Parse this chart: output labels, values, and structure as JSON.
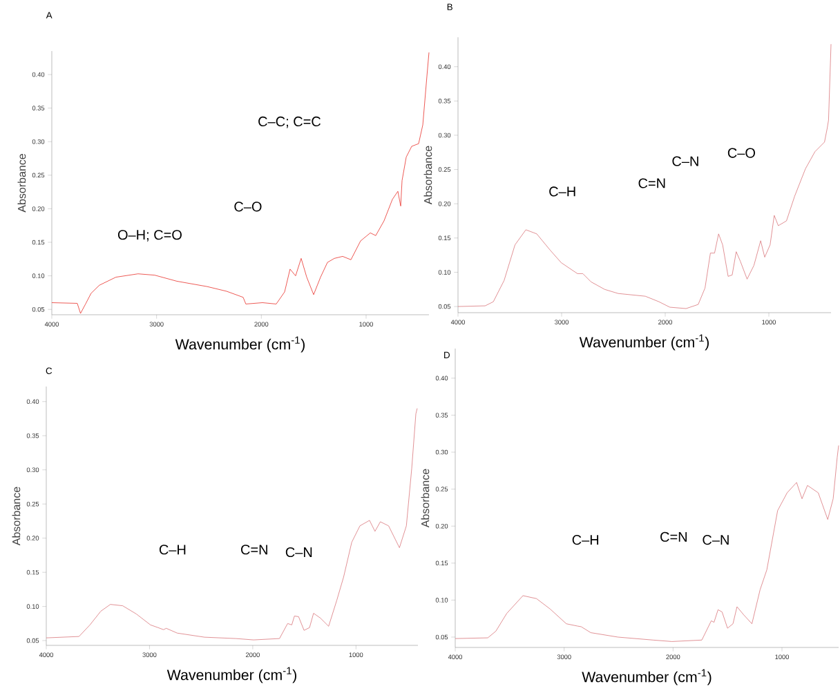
{
  "chart_data": [
    {
      "type": "line",
      "title": "A",
      "xlabel": "Wavenumber (cm$^{-1}$)",
      "ylabel": "Absorbance",
      "color": "#e8302a",
      "x": [
        4000,
        3757,
        3726,
        3678,
        3625,
        3546,
        3388,
        3177,
        3018,
        2807,
        2517,
        2332,
        2174,
        2148,
        1989,
        1858,
        1778,
        1726,
        1673,
        1620,
        1567,
        1501,
        1435,
        1369,
        1303,
        1224,
        1145,
        1053,
        960,
        908,
        829,
        749,
        697,
        670,
        657,
        617,
        565,
        499,
        459,
        420,
        400
      ],
      "values": [
        0.06,
        0.059,
        0.044,
        0.058,
        0.074,
        0.086,
        0.098,
        0.103,
        0.101,
        0.092,
        0.084,
        0.077,
        0.068,
        0.058,
        0.06,
        0.058,
        0.076,
        0.11,
        0.1,
        0.126,
        0.098,
        0.072,
        0.098,
        0.12,
        0.126,
        0.129,
        0.124,
        0.152,
        0.164,
        0.16,
        0.182,
        0.214,
        0.226,
        0.204,
        0.242,
        0.277,
        0.293,
        0.297,
        0.325,
        0.397,
        0.433
      ],
      "xlim": [
        4000,
        400
      ],
      "ylim": [
        0.042,
        0.435
      ],
      "xticks": [
        4000,
        3000,
        2000,
        1000
      ],
      "yticks": [
        0.05,
        {
          "value": 0.1,
          "label": "0.10"
        },
        0.15,
        {
          "value": 0.2,
          "label": "0.20"
        },
        0.25,
        {
          "value": 0.3,
          "label": "0.30"
        },
        0.35,
        {
          "value": 0.4,
          "label": "0.40"
        }
      ],
      "annotations": [
        "O–H; C=O",
        "C–O",
        "C–C; C=C"
      ]
    },
    {
      "type": "line",
      "title": "B",
      "xlabel": "Wavenumber (cm$^{-1}$)",
      "ylabel": "Absorbance",
      "color": "#d9767b",
      "x": [
        4000,
        3738,
        3659,
        3555,
        3450,
        3345,
        3240,
        3109,
        3004,
        2926,
        2847,
        2795,
        2716,
        2585,
        2454,
        2192,
        2061,
        1956,
        1799,
        1682,
        1616,
        1564,
        1524,
        1485,
        1446,
        1393,
        1354,
        1315,
        1275,
        1210,
        1144,
        1079,
        1040,
        988,
        948,
        909,
        830,
        751,
        647,
        555,
        463,
        437,
        424,
        400
      ],
      "values": [
        0.05,
        0.051,
        0.057,
        0.088,
        0.14,
        0.162,
        0.156,
        0.132,
        0.114,
        0.106,
        0.098,
        0.098,
        0.086,
        0.075,
        0.069,
        0.065,
        0.057,
        0.049,
        0.047,
        0.053,
        0.077,
        0.128,
        0.128,
        0.156,
        0.14,
        0.094,
        0.096,
        0.13,
        0.116,
        0.09,
        0.11,
        0.146,
        0.122,
        0.14,
        0.183,
        0.168,
        0.175,
        0.211,
        0.251,
        0.276,
        0.29,
        0.31,
        0.322,
        0.433
      ],
      "xlim": [
        4000,
        400
      ],
      "ylim": [
        0.041,
        0.443
      ],
      "xticks": [
        4000,
        3000,
        2000,
        1000
      ],
      "yticks": [
        0.05,
        {
          "value": 0.1,
          "label": "0.10"
        },
        0.15,
        {
          "value": 0.2,
          "label": "0.20"
        },
        0.25,
        {
          "value": 0.3,
          "label": "0.30"
        },
        0.35,
        {
          "value": 0.4,
          "label": "0.40"
        }
      ],
      "annotations": [
        "C–H",
        "C=N",
        "C–N",
        "C–O"
      ]
    },
    {
      "type": "line",
      "title": "C",
      "xlabel": "Wavenumber (cm$^{-1}$)",
      "ylabel": "Absorbance",
      "color": "#d9767b",
      "x": [
        4000,
        3683,
        3577,
        3472,
        3379,
        3260,
        3128,
        2991,
        2917,
        2864,
        2838,
        2732,
        2468,
        2164,
        1992,
        1741,
        1662,
        1622,
        1596,
        1556,
        1503,
        1450,
        1411,
        1345,
        1265,
        1186,
        1120,
        1041,
        962,
        869,
        816,
        764,
        684,
        579,
        512,
        460,
        420,
        407
      ],
      "values": [
        0.054,
        0.056,
        0.073,
        0.093,
        0.103,
        0.101,
        0.089,
        0.073,
        0.069,
        0.066,
        0.068,
        0.061,
        0.055,
        0.053,
        0.051,
        0.053,
        0.075,
        0.073,
        0.086,
        0.085,
        0.065,
        0.069,
        0.09,
        0.083,
        0.071,
        0.109,
        0.143,
        0.194,
        0.218,
        0.226,
        0.21,
        0.224,
        0.218,
        0.186,
        0.218,
        0.302,
        0.382,
        0.39
      ],
      "xlim": [
        4000,
        400
      ],
      "ylim": [
        0.043,
        0.422
      ],
      "xticks": [
        4000,
        3000,
        2000,
        1000
      ],
      "yticks": [
        0.05,
        {
          "value": 0.1,
          "label": "0.10"
        },
        0.15,
        {
          "value": 0.2,
          "label": "0.20"
        },
        0.25,
        {
          "value": 0.3,
          "label": "0.30"
        },
        0.35,
        {
          "value": 0.4,
          "label": "0.40"
        }
      ],
      "annotations": [
        "C–H",
        "C=N",
        "C–N"
      ]
    },
    {
      "type": "line",
      "title": "D",
      "xlabel": "Wavenumber (cm$^{-1}$)",
      "ylabel": "Absorbance",
      "color": "#d9767b",
      "x": [
        4000,
        3701,
        3627,
        3527,
        3378,
        3254,
        3129,
        2980,
        2881,
        2843,
        2756,
        2507,
        2184,
        2010,
        1736,
        1649,
        1624,
        1587,
        1550,
        1500,
        1450,
        1413,
        1351,
        1276,
        1201,
        1139,
        1040,
        953,
        866,
        816,
        766,
        667,
        580,
        530,
        493,
        480
      ],
      "values": [
        0.048,
        0.049,
        0.058,
        0.082,
        0.106,
        0.102,
        0.088,
        0.068,
        0.065,
        0.064,
        0.056,
        0.05,
        0.046,
        0.044,
        0.046,
        0.072,
        0.07,
        0.087,
        0.084,
        0.062,
        0.068,
        0.091,
        0.08,
        0.068,
        0.114,
        0.141,
        0.221,
        0.245,
        0.259,
        0.237,
        0.255,
        0.245,
        0.209,
        0.237,
        0.293,
        0.309
      ],
      "xlim": [
        4000,
        480
      ],
      "ylim": [
        0.036,
        0.44
      ],
      "xticks": [
        4000,
        3000,
        2000,
        1000
      ],
      "yticks": [
        0.05,
        {
          "value": 0.1,
          "label": "0.10"
        },
        0.15,
        {
          "value": 0.2,
          "label": "0.20"
        },
        0.25,
        {
          "value": 0.3,
          "label": "0.30"
        },
        0.35,
        {
          "value": 0.4,
          "label": "0.40"
        }
      ],
      "annotations": [
        "C–H",
        "C=N",
        "C–N"
      ]
    }
  ]
}
